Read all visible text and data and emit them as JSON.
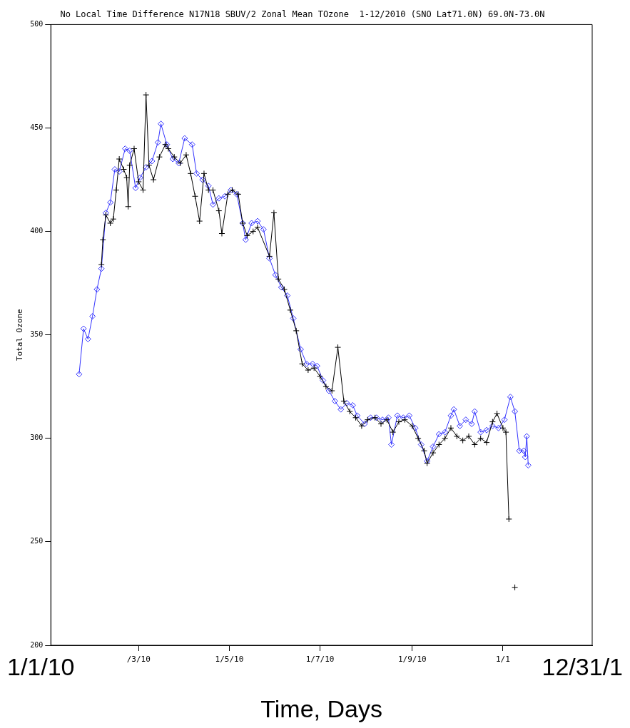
{
  "chart_data": {
    "type": "line",
    "title": "No Local Time Difference N17N18 SBUV/2 Zonal Mean TOzone  1-12/2010 (SNO Lat71.0N) 69.0N-73.0N",
    "xlabel": "Time, Days",
    "ylabel": "Total Ozone",
    "xlim": [
      "2010-01-01",
      "2010-12-31"
    ],
    "xticks": [
      {
        "value": "2010-03-01",
        "label": "/3/10"
      },
      {
        "value": "2010-05-01",
        "label": "1/5/10"
      },
      {
        "value": "2010-07-01",
        "label": "1/7/10"
      },
      {
        "value": "2010-09-01",
        "label": "1/9/10"
      },
      {
        "value": "2010-11-01",
        "label": "1/1"
      }
    ],
    "annotations": [
      "1/1/10",
      "12/31/1"
    ],
    "ylim": [
      200,
      500
    ],
    "yticks": [
      200,
      250,
      300,
      350,
      400,
      450,
      500
    ],
    "grid": false,
    "legend": false,
    "series": [
      {
        "color": "#3333ff",
        "marker": "diamond",
        "x": [
          "2010-01-20",
          "2010-01-23",
          "2010-01-26",
          "2010-01-29",
          "2010-02-01",
          "2010-02-04",
          "2010-02-07",
          "2010-02-10",
          "2010-02-13",
          "2010-02-16",
          "2010-02-20",
          "2010-02-23",
          "2010-02-27",
          "2010-03-02",
          "2010-03-06",
          "2010-03-10",
          "2010-03-14",
          "2010-03-16",
          "2010-03-20",
          "2010-03-24",
          "2010-03-28",
          "2010-04-01",
          "2010-04-06",
          "2010-04-09",
          "2010-04-13",
          "2010-04-17",
          "2010-04-20",
          "2010-04-24",
          "2010-04-28",
          "2010-05-02",
          "2010-05-06",
          "2010-05-10",
          "2010-05-12",
          "2010-05-16",
          "2010-05-20",
          "2010-05-24",
          "2010-05-28",
          "2010-06-01",
          "2010-06-05",
          "2010-06-09",
          "2010-06-13",
          "2010-06-18",
          "2010-06-22",
          "2010-06-26",
          "2010-06-29",
          "2010-07-03",
          "2010-07-07",
          "2010-07-11",
          "2010-07-15",
          "2010-07-19",
          "2010-07-23",
          "2010-07-26",
          "2010-07-31",
          "2010-08-04",
          "2010-08-08",
          "2010-08-12",
          "2010-08-16",
          "2010-08-18",
          "2010-08-22",
          "2010-08-26",
          "2010-08-30",
          "2010-09-03",
          "2010-09-07",
          "2010-09-11",
          "2010-09-15",
          "2010-09-19",
          "2010-09-23",
          "2010-09-27",
          "2010-09-29",
          "2010-10-03",
          "2010-10-07",
          "2010-10-11",
          "2010-10-13",
          "2010-10-17",
          "2010-10-21",
          "2010-10-25",
          "2010-10-29",
          "2010-11-02",
          "2010-11-06",
          "2010-11-09",
          "2010-11-12",
          "2010-11-15",
          "2010-11-16",
          "2010-11-17",
          "2010-11-18"
        ],
        "values": [
          331,
          353,
          348,
          359,
          372,
          382,
          409,
          414,
          430,
          429,
          440,
          439,
          421,
          426,
          431,
          434,
          443,
          452,
          442,
          435,
          433,
          445,
          442,
          428,
          425,
          422,
          413,
          416,
          417,
          420,
          418,
          404,
          396,
          404,
          405,
          401,
          387,
          379,
          373,
          369,
          358,
          343,
          336,
          336,
          335,
          328,
          323,
          318,
          314,
          317,
          316,
          311,
          307,
          310,
          310,
          309,
          310,
          297,
          311,
          310,
          311,
          305,
          297,
          289,
          296,
          302,
          303,
          311,
          314,
          306,
          309,
          307,
          313,
          303,
          304,
          306,
          305,
          309,
          320,
          313,
          294,
          294,
          291,
          301,
          287
        ]
      },
      {
        "color": "#000000",
        "marker": "cross",
        "x": [
          "2010-02-04",
          "2010-02-05",
          "2010-02-07",
          "2010-02-10",
          "2010-02-12",
          "2010-02-14",
          "2010-02-16",
          "2010-02-19",
          "2010-02-21",
          "2010-02-22",
          "2010-02-23",
          "2010-02-26",
          "2010-03-01",
          "2010-03-04",
          "2010-03-06",
          "2010-03-08",
          "2010-03-11",
          "2010-03-15",
          "2010-03-19",
          "2010-03-21",
          "2010-03-25",
          "2010-03-29",
          "2010-04-02",
          "2010-04-05",
          "2010-04-08",
          "2010-04-11",
          "2010-04-14",
          "2010-04-17",
          "2010-04-20",
          "2010-04-24",
          "2010-04-26",
          "2010-04-30",
          "2010-05-03",
          "2010-05-07",
          "2010-05-10",
          "2010-05-13",
          "2010-05-17",
          "2010-05-20",
          "2010-05-28",
          "2010-05-31",
          "2010-06-03",
          "2010-06-07",
          "2010-06-11",
          "2010-06-15",
          "2010-06-19",
          "2010-06-23",
          "2010-06-27",
          "2010-07-01",
          "2010-07-05",
          "2010-07-09",
          "2010-07-13",
          "2010-07-17",
          "2010-07-21",
          "2010-07-25",
          "2010-07-29",
          "2010-08-02",
          "2010-08-07",
          "2010-08-11",
          "2010-08-15",
          "2010-08-19",
          "2010-08-23",
          "2010-08-27",
          "2010-09-01",
          "2010-09-05",
          "2010-09-09",
          "2010-09-11",
          "2010-09-15",
          "2010-09-19",
          "2010-09-23",
          "2010-09-27",
          "2010-10-01",
          "2010-10-05",
          "2010-10-09",
          "2010-10-13",
          "2010-10-17",
          "2010-10-21",
          "2010-10-25",
          "2010-10-28",
          "2010-11-01",
          "2010-11-03",
          "2010-11-05",
          "2010-11-07",
          "2010-11-09"
        ],
        "values": [
          384,
          396,
          408,
          404,
          406,
          420,
          435,
          430,
          426,
          412,
          432,
          440,
          424,
          420,
          466,
          432,
          425,
          436,
          442,
          440,
          436,
          433,
          437,
          428,
          417,
          405,
          428,
          420,
          420,
          410,
          399,
          418,
          420,
          418,
          404,
          398,
          400,
          402,
          388,
          409,
          377,
          372,
          362,
          352,
          336,
          333,
          334,
          330,
          325,
          323,
          344,
          318,
          313,
          310,
          306,
          309,
          310,
          307,
          309,
          303,
          308,
          309,
          306,
          300,
          294,
          288,
          293,
          297,
          300,
          305,
          301,
          299,
          301,
          297,
          300,
          298,
          308,
          312,
          305,
          303,
          261,
          null,
          228
        ]
      }
    ]
  }
}
